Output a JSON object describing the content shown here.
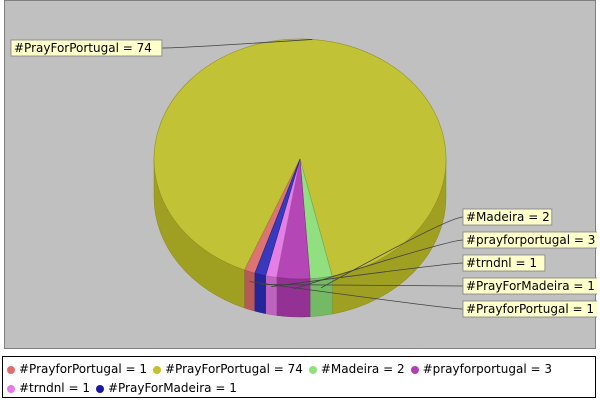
{
  "chart_data": {
    "type": "pie",
    "title": "",
    "slices": [
      {
        "label": "#PrayforPortugal",
        "value": 1,
        "color": "#e06c6c"
      },
      {
        "label": "#PrayForPortugal",
        "value": 74,
        "color": "#c2c22a"
      },
      {
        "label": "#Madeira",
        "value": 2,
        "color": "#8de37a"
      },
      {
        "label": "#prayforportugal",
        "value": 3,
        "color": "#b43cb4"
      },
      {
        "label": "#trndnl",
        "value": 1,
        "color": "#e87ae8"
      },
      {
        "label": "#PrayForMadeira",
        "value": 1,
        "color": "#2e2ebe"
      }
    ],
    "labels": [
      {
        "text": "#PrayForPortugal = 74"
      },
      {
        "text": "#Madeira = 2"
      },
      {
        "text": "#prayforportugal = 3"
      },
      {
        "text": "#trndnl = 1"
      },
      {
        "text": "#PrayForMadeira = 1"
      },
      {
        "text": "#PrayforPortugal = 1"
      }
    ],
    "legend": {
      "position": "bottom",
      "entries": [
        {
          "text": "#PrayforPortugal = 1",
          "color": "#e06c6c"
        },
        {
          "text": "#PrayForPortugal = 74",
          "color": "#c2c22a"
        },
        {
          "text": "#Madeira = 2",
          "color": "#8de37a"
        },
        {
          "text": "#prayforportugal = 3",
          "color": "#b43cb4"
        },
        {
          "text": "#trndnl = 1",
          "color": "#e87ae8"
        },
        {
          "text": "#PrayForMadeira = 1",
          "color": "#1a1a9e"
        }
      ]
    },
    "style": "3d-pie",
    "background": "#c0c0c0"
  }
}
